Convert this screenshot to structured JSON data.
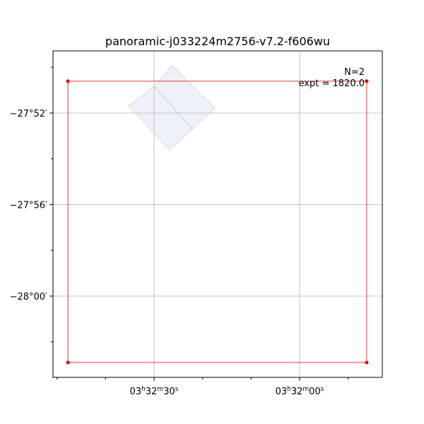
{
  "chart_data": {
    "type": "footprint",
    "title": "panoramic-j033224m2756-v7.2-f606wu",
    "annotations": [
      "N=2",
      "expt = 1820.0"
    ],
    "xlim": [
      53.2118,
      52.929
    ],
    "ylim": [
      -28.0592,
      -27.8214
    ],
    "xticks": [
      {
        "value": 53.125,
        "label": "03h32m30s"
      },
      {
        "value": 53.0,
        "label": "03h32m00s"
      }
    ],
    "yticks": [
      {
        "value": -27.8667,
        "label": "−27°52′"
      },
      {
        "value": -27.9333,
        "label": "−27°56′"
      },
      {
        "value": -28.0,
        "label": "−28°00′"
      }
    ],
    "xminorticks": [
      53.2083,
      53.1667,
      53.0833,
      53.0417,
      52.9583
    ],
    "yminorticks": [
      -27.8333,
      -27.9,
      -27.9667,
      -28.0333
    ],
    "grid": true,
    "shapes": [
      {
        "color": "#b0c4de",
        "fill": true,
        "x": [
          53.125,
          53.1092,
          53.0728,
          53.0922
        ],
        "y": [
          -27.8471,
          -27.8322,
          -27.8631,
          -27.8785
        ]
      },
      {
        "color": "#b0c4de",
        "fill": true,
        "x": [
          53.1468,
          53.125,
          53.0922,
          53.1117
        ],
        "y": [
          -27.8615,
          -27.8471,
          -27.8785,
          -27.8935
        ]
      },
      {
        "color": "#ff0000",
        "fill": false,
        "x": [
          53.199,
          52.9424,
          52.9424,
          53.199
        ],
        "y": [
          -27.8435,
          -27.8435,
          -28.0484,
          -28.0484
        ]
      }
    ]
  }
}
